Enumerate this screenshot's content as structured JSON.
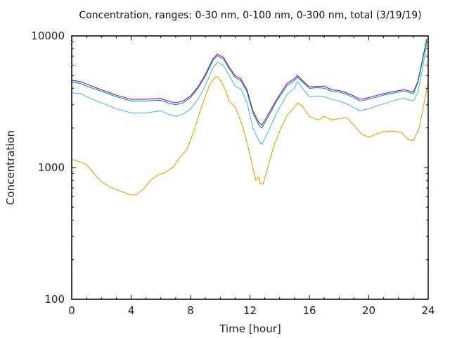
{
  "chart_data": {
    "type": "line",
    "title": "Concentration, ranges: 0-30 nm, 0-100 nm, 0-300 nm, total (3/19/19)",
    "xlabel": "Time [hour]",
    "ylabel": "Concentration",
    "xlim": [
      0,
      24
    ],
    "ylim": [
      100,
      10000
    ],
    "yscale": "log",
    "xticks": [
      "0",
      "4",
      "8",
      "12",
      "16",
      "20",
      "24"
    ],
    "xtick_values": [
      0,
      4,
      8,
      12,
      16,
      20,
      24
    ],
    "yticks": [
      "100",
      "1000",
      "10000"
    ],
    "ytick_values": [
      100,
      1000,
      10000
    ],
    "grid": false,
    "legend": "none",
    "series": [
      {
        "name": "total",
        "color": "#9400d3",
        "x": [
          0,
          0.6,
          1,
          2,
          3,
          4,
          5,
          6,
          6.5,
          7,
          7.5,
          8,
          8.5,
          9,
          9.5,
          9.8,
          10.2,
          10.6,
          11,
          11.4,
          11.8,
          12.2,
          12.6,
          12.8,
          13.2,
          13.8,
          14.5,
          15,
          15.2,
          15.6,
          16,
          16.5,
          17,
          17.5,
          18,
          18.5,
          19,
          19.4,
          20,
          21,
          22,
          22.4,
          23,
          23.3,
          23.6,
          23.9
        ],
        "values": [
          4600,
          4500,
          4300,
          3900,
          3550,
          3300,
          3300,
          3350,
          3200,
          3100,
          3200,
          3500,
          4100,
          5100,
          6700,
          7250,
          6900,
          5800,
          5000,
          4700,
          3900,
          2700,
          2200,
          2100,
          2500,
          3300,
          4350,
          4750,
          5000,
          4500,
          4100,
          4150,
          4150,
          3900,
          3850,
          3700,
          3500,
          3300,
          3400,
          3650,
          3850,
          3900,
          3750,
          4500,
          6500,
          9500
        ]
      },
      {
        "name": "0-300 nm",
        "color": "#009e73",
        "x": [
          0,
          0.6,
          1,
          2,
          3,
          4,
          5,
          6,
          6.5,
          7,
          7.5,
          8,
          8.5,
          9,
          9.5,
          9.8,
          10.2,
          10.6,
          11,
          11.4,
          11.8,
          12.2,
          12.6,
          12.8,
          13.2,
          13.8,
          14.5,
          15,
          15.2,
          15.6,
          16,
          16.5,
          17,
          17.5,
          18,
          18.5,
          19,
          19.4,
          20,
          21,
          22,
          22.4,
          23,
          23.3,
          23.6,
          23.9
        ],
        "values": [
          4450,
          4350,
          4150,
          3800,
          3450,
          3200,
          3200,
          3250,
          3100,
          3000,
          3100,
          3400,
          4000,
          4950,
          6500,
          7050,
          6700,
          5650,
          4850,
          4550,
          3750,
          2600,
          2100,
          2000,
          2400,
          3200,
          4200,
          4600,
          4850,
          4400,
          4000,
          4050,
          4000,
          3800,
          3750,
          3600,
          3400,
          3200,
          3300,
          3550,
          3750,
          3800,
          3650,
          4400,
          6300,
          9200
        ]
      },
      {
        "name": "0-100 nm",
        "color": "#56b4e9",
        "x": [
          0,
          0.6,
          1,
          2,
          3,
          4,
          5,
          6,
          6.5,
          7,
          7.5,
          8,
          8.5,
          9,
          9.5,
          9.8,
          10.2,
          10.6,
          11,
          11.4,
          11.8,
          12.2,
          12.6,
          12.8,
          13.2,
          13.8,
          14.5,
          15,
          15.2,
          15.6,
          16,
          16.5,
          17,
          17.5,
          18,
          18.5,
          19,
          19.4,
          20,
          21,
          22,
          22.4,
          23,
          23.3,
          23.6,
          23.9
        ],
        "values": [
          3700,
          3650,
          3450,
          3100,
          2800,
          2600,
          2600,
          2700,
          2550,
          2450,
          2550,
          2800,
          3300,
          4200,
          5700,
          6300,
          6000,
          5000,
          4150,
          3950,
          3100,
          2000,
          1600,
          1500,
          1850,
          2600,
          3600,
          4000,
          4500,
          3900,
          3450,
          3500,
          3450,
          3300,
          3200,
          3050,
          2850,
          2700,
          2800,
          3050,
          3300,
          3350,
          3200,
          3700,
          5500,
          8800
        ]
      },
      {
        "name": "0-30 nm",
        "color": "#e69f00",
        "x": [
          0,
          0.3,
          0.6,
          1,
          1.5,
          2,
          2.5,
          3,
          3.5,
          4,
          4.3,
          4.8,
          5.3,
          5.8,
          6.3,
          6.8,
          7.3,
          7.8,
          8.3,
          8.6,
          9,
          9.3,
          9.7,
          9.9,
          10.3,
          10.6,
          11,
          11.3,
          11.6,
          11.9,
          12.2,
          12.4,
          12.6,
          12.7,
          12.9,
          13.2,
          13.6,
          14,
          14.5,
          14.9,
          15.2,
          15.5,
          16,
          16.6,
          17,
          17.5,
          18,
          18.5,
          19,
          19.5,
          20,
          20.8,
          21.5,
          22.2,
          22.6,
          23,
          23.4,
          23.7,
          24
        ],
        "values": [
          1150,
          1130,
          1100,
          1050,
          900,
          780,
          720,
          680,
          650,
          620,
          620,
          680,
          800,
          880,
          920,
          1000,
          1200,
          1400,
          2000,
          2600,
          3500,
          4300,
          4900,
          4850,
          4000,
          3200,
          2900,
          2400,
          1900,
          1400,
          1000,
          800,
          850,
          750,
          760,
          1000,
          1450,
          1900,
          2500,
          2800,
          3100,
          2950,
          2450,
          2300,
          2450,
          2300,
          2350,
          2400,
          2100,
          1800,
          1700,
          1850,
          1900,
          1850,
          1650,
          1600,
          2000,
          3000,
          4500
        ]
      }
    ]
  }
}
